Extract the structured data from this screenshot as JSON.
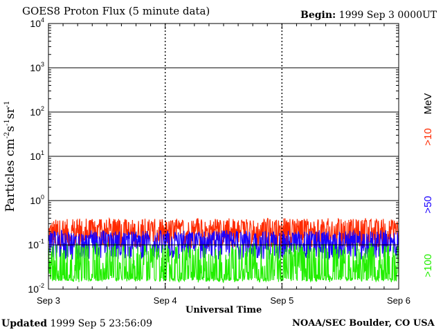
{
  "header": {
    "title": "GOES8 Proton Flux (5 minute data)",
    "begin_label": "Begin:",
    "begin_value": "1999 Sep 3 0000UT"
  },
  "footer": {
    "updated_label": "Updated",
    "updated_value": "1999 Sep  5 23:56:09",
    "credit": "NOAA/SEC Boulder, CO USA"
  },
  "colors": {
    "gt10": "#ff2a00",
    "gt50": "#1a00ff",
    "gt100": "#22ee00",
    "axis": "#000000",
    "background": "#ffffff"
  },
  "chart_data": {
    "type": "line",
    "title": "GOES8 Proton Flux (5 minute data)",
    "xlabel": "Universal Time",
    "ylabel": "Particles cm⁻²s⁻¹sr⁻¹",
    "yscale": "log",
    "ylim": [
      0.01,
      10000
    ],
    "yticks": [
      {
        "value": 0.01,
        "base": "10",
        "exp": "-2"
      },
      {
        "value": 0.1,
        "base": "10",
        "exp": "-1"
      },
      {
        "value": 1,
        "base": "10",
        "exp": "0"
      },
      {
        "value": 10,
        "base": "10",
        "exp": "1"
      },
      {
        "value": 100,
        "base": "10",
        "exp": "2"
      },
      {
        "value": 1000,
        "base": "10",
        "exp": "3"
      },
      {
        "value": 10000,
        "base": "10",
        "exp": "4"
      }
    ],
    "x_ticks": [
      "Sep 3",
      "Sep 4",
      "Sep 5",
      "Sep 6"
    ],
    "grid": "horizontal at decades; dotted verticals at day boundaries",
    "unit_label": "MeV",
    "series": [
      {
        "name": ">10",
        "color": "#ff2a00",
        "typical_range": [
          0.1,
          0.4
        ],
        "baseline": 0.18
      },
      {
        "name": ">50",
        "color": "#1a00ff",
        "typical_range": [
          0.05,
          0.2
        ],
        "baseline": 0.1
      },
      {
        "name": ">100",
        "color": "#22ee00",
        "typical_range": [
          0.015,
          0.1
        ],
        "baseline": 0.04
      }
    ]
  }
}
